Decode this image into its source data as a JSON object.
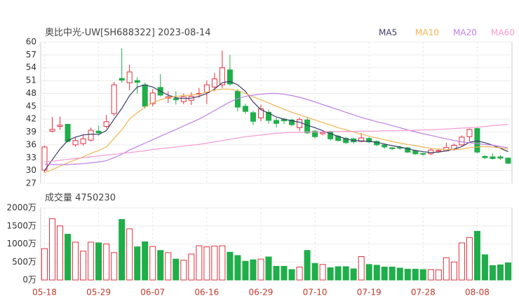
{
  "chart_data": [
    {
      "type": "candlestick",
      "title": "奥比中光-UW[SH688322] 2023-08-14",
      "up_color": "#e0303f",
      "down_color": "#1fae4a",
      "ylim": [
        27,
        60
      ],
      "yticks": [
        27,
        30,
        33,
        36,
        39,
        42,
        45,
        48,
        51,
        54,
        57,
        60
      ],
      "grid": true,
      "open": [
        30.1,
        39.2,
        40.3,
        40.8,
        36.0,
        36.3,
        37.1,
        39.2,
        40.3,
        43.3,
        51.5,
        50.5,
        51.0,
        50.0,
        45.6,
        49.4,
        46.9,
        46.8,
        46.1,
        46.4,
        47.8,
        48.2,
        49.5,
        50.0,
        53.5,
        48.5,
        45.0,
        43.5,
        42.3,
        43.6,
        41.7,
        42.0,
        41.8,
        40.0,
        41.8,
        39.2,
        38.6,
        39.1,
        38.0,
        37.5,
        37.4,
        36.8,
        37.5,
        36.8,
        36.0,
        35.3,
        35.4,
        35.3,
        34.6,
        34.0,
        33.9,
        34.5,
        34.6,
        34.9,
        36.0,
        37.9,
        39.8,
        33.3,
        33.2,
        33.2,
        32.9
      ],
      "high": [
        35.8,
        42.5,
        42.6,
        40.8,
        37.8,
        38.5,
        40.0,
        40.5,
        43.0,
        50.7,
        58.5,
        54.7,
        51.8,
        50.5,
        49.0,
        52.5,
        48.5,
        48.5,
        48.0,
        48.3,
        49.3,
        51.0,
        52.8,
        58.0,
        57.0,
        49.0,
        45.6,
        44.0,
        45.4,
        44.2,
        42.3,
        42.2,
        42.1,
        42.4,
        42.5,
        39.5,
        39.3,
        39.3,
        38.3,
        37.9,
        37.7,
        38.8,
        37.8,
        37.0,
        36.2,
        35.5,
        35.8,
        35.5,
        34.8,
        34.1,
        35.1,
        35.1,
        36.5,
        36.3,
        38.2,
        39.8,
        40.0,
        33.6,
        34.0,
        33.6,
        33.0
      ],
      "low": [
        29.6,
        38.9,
        39.5,
        36.6,
        35.6,
        35.8,
        36.8,
        38.2,
        39.8,
        42.8,
        50.5,
        48.7,
        48.0,
        44.5,
        45.0,
        47.3,
        45.8,
        45.4,
        45.5,
        45.3,
        47.0,
        45.5,
        48.5,
        49.2,
        49.8,
        43.8,
        43.2,
        40.6,
        41.5,
        40.9,
        40.0,
        40.9,
        40.3,
        39.2,
        38.5,
        37.5,
        38.2,
        37.0,
        36.8,
        36.2,
        36.3,
        36.6,
        36.4,
        35.7,
        35.1,
        34.8,
        34.9,
        34.1,
        33.7,
        33.5,
        33.6,
        34.2,
        34.4,
        34.6,
        35.8,
        36.8,
        34.0,
        32.7,
        32.6,
        32.5,
        31.6
      ],
      "close": [
        35.5,
        39.6,
        40.6,
        36.8,
        37.0,
        37.4,
        39.4,
        38.8,
        41.4,
        50.0,
        51.1,
        53.0,
        50.6,
        45.0,
        48.1,
        47.6,
        47.2,
        46.5,
        47.2,
        47.3,
        48.0,
        50.0,
        51.4,
        54.0,
        50.2,
        44.8,
        43.8,
        41.5,
        44.4,
        41.7,
        41.0,
        41.6,
        40.7,
        41.9,
        38.8,
        37.9,
        38.9,
        37.4,
        37.0,
        36.5,
        36.7,
        37.6,
        36.7,
        36.0,
        35.5,
        35.1,
        35.2,
        34.3,
        33.9,
        33.8,
        34.8,
        34.7,
        35.4,
        35.9,
        37.8,
        39.6,
        34.3,
        33.0,
        32.8,
        32.9,
        31.7
      ],
      "series": [
        {
          "name": "MA5",
          "color": "#3b3b6b",
          "values": [
            30.0,
            32.5,
            35.0,
            37.0,
            37.8,
            38.3,
            38.5,
            38.4,
            39.3,
            42.0,
            44.5,
            47.5,
            49.5,
            50.0,
            49.5,
            48.5,
            47.6,
            47.0,
            46.8,
            46.9,
            47.3,
            48.0,
            49.0,
            50.5,
            50.8,
            50.0,
            48.5,
            46.0,
            44.2,
            43.4,
            42.5,
            42.0,
            41.6,
            41.3,
            40.6,
            40.0,
            39.3,
            38.6,
            38.0,
            37.4,
            37.0,
            36.9,
            36.8,
            36.6,
            36.2,
            35.8,
            35.5,
            35.1,
            34.7,
            34.4,
            34.2,
            34.3,
            34.6,
            35.0,
            35.6,
            36.6,
            36.9,
            36.5,
            35.9,
            35.2,
            34.4
          ]
        },
        {
          "name": "MA10",
          "color": "#f2b450",
          "values": [
            29.5,
            30.2,
            31.0,
            31.8,
            32.5,
            33.2,
            34.0,
            34.7,
            35.5,
            37.5,
            39.5,
            42.0,
            43.5,
            44.8,
            45.8,
            46.5,
            47.0,
            47.3,
            47.5,
            47.6,
            47.8,
            48.3,
            48.8,
            49.0,
            49.0,
            48.7,
            48.0,
            47.2,
            46.5,
            45.8,
            45.0,
            44.3,
            43.6,
            43.0,
            42.4,
            41.8,
            41.2,
            40.6,
            40.0,
            39.5,
            39.0,
            38.5,
            38.0,
            37.6,
            37.2,
            36.8,
            36.4,
            36.1,
            35.8,
            35.5,
            35.2,
            35.0,
            34.9,
            34.9,
            35.0,
            35.3,
            35.5,
            35.6,
            35.5,
            35.3,
            35.0
          ]
        },
        {
          "name": "MA20",
          "color": "#c07fe0",
          "values": [
            31.5,
            31.4,
            31.4,
            31.4,
            31.5,
            31.6,
            31.8,
            32.0,
            32.3,
            33.0,
            33.8,
            34.8,
            35.6,
            36.4,
            37.2,
            38.0,
            38.8,
            39.6,
            40.4,
            41.2,
            42.0,
            43.0,
            44.0,
            45.0,
            46.0,
            46.8,
            47.3,
            47.6,
            47.8,
            48.0,
            48.0,
            47.8,
            47.5,
            47.1,
            46.6,
            46.0,
            45.4,
            44.8,
            44.2,
            43.6,
            43.0,
            42.4,
            41.9,
            41.4,
            41.0,
            40.5,
            40.0,
            39.5,
            39.0,
            38.6,
            38.2,
            37.8,
            37.4,
            37.0,
            36.7,
            36.5,
            36.3,
            36.1,
            35.9,
            35.6,
            35.3
          ]
        },
        {
          "name": "MA60",
          "color": "#f59ad2",
          "values": [
            32.0,
            32.2,
            32.4,
            32.6,
            32.8,
            33.0,
            33.2,
            33.4,
            33.6,
            33.8,
            34.0,
            34.2,
            34.4,
            34.6,
            34.9,
            35.1,
            35.3,
            35.5,
            35.7,
            35.9,
            36.1,
            36.4,
            36.7,
            37.0,
            37.3,
            37.6,
            37.9,
            38.1,
            38.3,
            38.5,
            38.7,
            38.8,
            38.9,
            38.9,
            39.0,
            39.0,
            39.0,
            39.1,
            39.1,
            39.1,
            39.1,
            39.2,
            39.2,
            39.2,
            39.3,
            39.3,
            39.3,
            39.4,
            39.4,
            39.5,
            39.5,
            39.6,
            39.7,
            39.8,
            39.9,
            40.0,
            40.1,
            40.3,
            40.5,
            40.6,
            40.8
          ]
        }
      ]
    },
    {
      "type": "bar",
      "title": "成交量 4750230",
      "categories": [
        "05-18",
        null,
        null,
        null,
        null,
        null,
        null,
        "05-29",
        null,
        null,
        null,
        null,
        null,
        null,
        "06-07",
        null,
        null,
        null,
        null,
        null,
        null,
        "06-16",
        null,
        null,
        null,
        null,
        null,
        null,
        "06-29",
        null,
        null,
        null,
        null,
        null,
        null,
        "07-10",
        null,
        null,
        null,
        null,
        null,
        null,
        "07-19",
        null,
        null,
        null,
        null,
        null,
        null,
        "07-28",
        null,
        null,
        null,
        null,
        null,
        null,
        "08-08",
        null,
        null,
        null,
        null
      ],
      "values": [
        870,
        1700,
        1500,
        1270,
        1050,
        800,
        1050,
        1030,
        1000,
        760,
        1680,
        1420,
        920,
        1060,
        930,
        820,
        760,
        580,
        550,
        720,
        950,
        920,
        940,
        950,
        770,
        680,
        520,
        560,
        580,
        640,
        380,
        380,
        290,
        360,
        820,
        460,
        430,
        340,
        370,
        370,
        310,
        650,
        430,
        410,
        360,
        360,
        330,
        300,
        300,
        290,
        290,
        280,
        620,
        500,
        1030,
        1180,
        1350,
        700,
        400,
        420,
        475
      ],
      "ylim": [
        0,
        2000
      ],
      "yticks": [
        {
          "value": 0,
          "label": "0万"
        },
        {
          "value": 500,
          "label": "500万"
        },
        {
          "value": 1000,
          "label": "1000万"
        },
        {
          "value": 1500,
          "label": "1500万"
        },
        {
          "value": 2000,
          "label": "2000万"
        }
      ],
      "grid": true
    }
  ]
}
